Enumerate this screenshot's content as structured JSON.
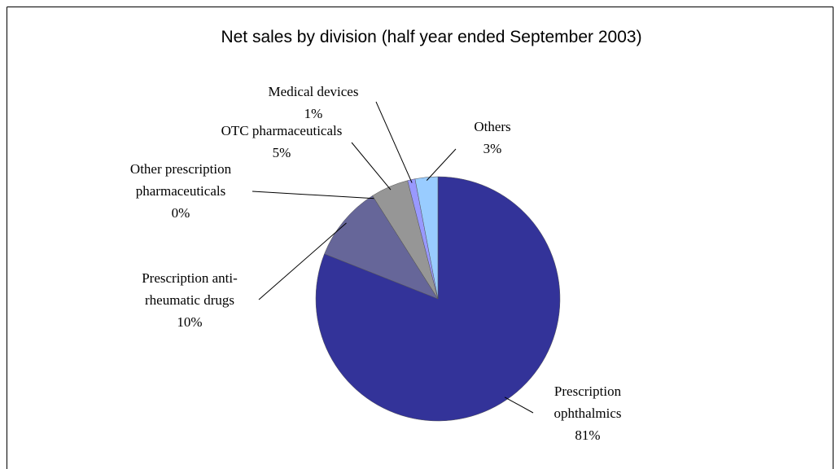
{
  "chart_data": {
    "type": "pie",
    "title": "Net sales by division (half year ended September 2003)",
    "categories": [
      "Prescription\nophthalmics",
      "Prescription anti-\nrheumatic drugs",
      "Other prescription\npharmaceuticals",
      "OTC pharmaceuticals",
      "Medical devices",
      "Others"
    ],
    "values": [
      81,
      10,
      0,
      5,
      1,
      3
    ],
    "value_labels": [
      "81%",
      "10%",
      "0%",
      "5%",
      "1%",
      "3%"
    ],
    "colors": [
      "#333399",
      "#666699",
      "#808080",
      "#969696",
      "#9999ff",
      "#99ccff"
    ]
  }
}
